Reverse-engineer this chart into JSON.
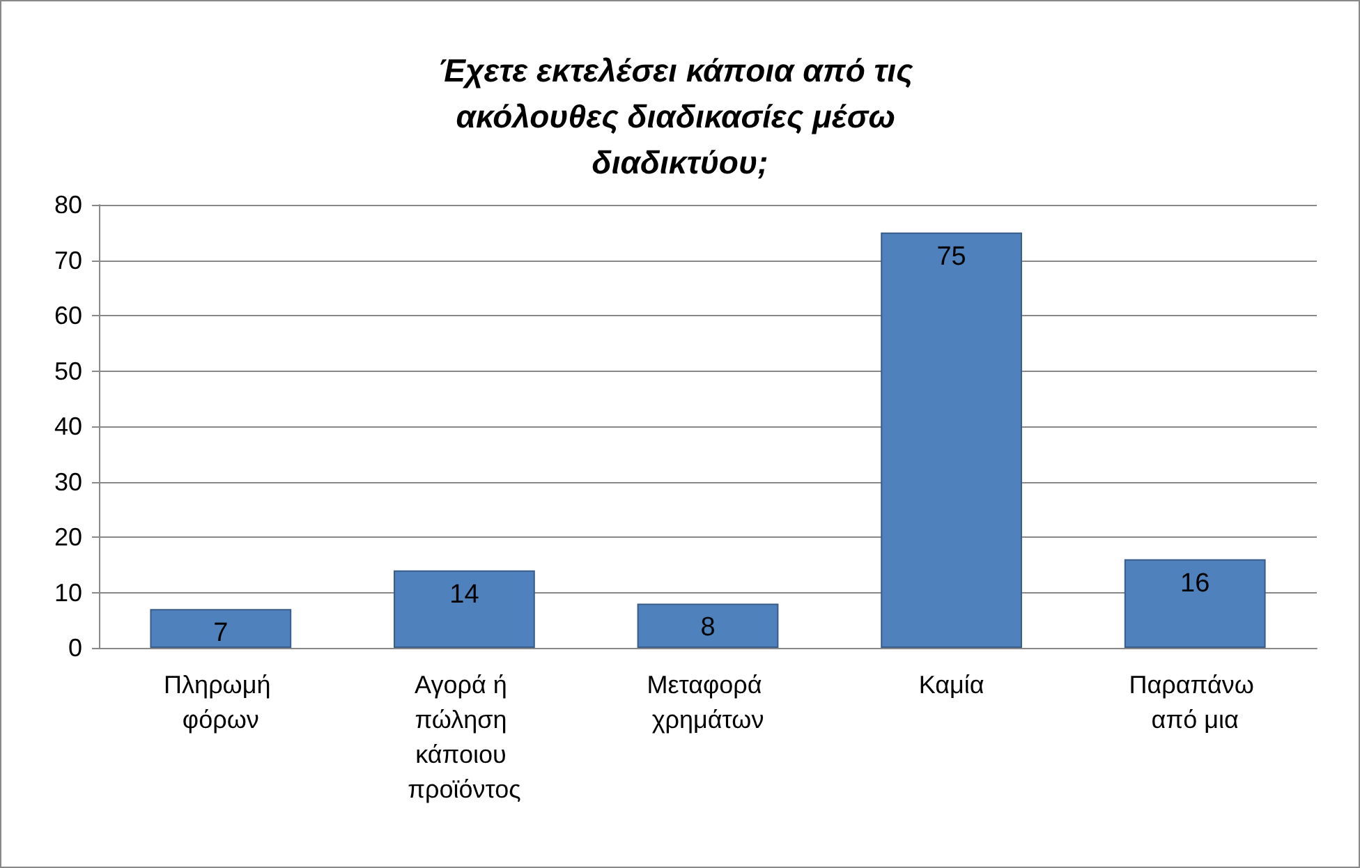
{
  "chart_data": {
    "type": "bar",
    "title": "Έχετε εκτελέσει κάποια από τις ακόλουθες διαδικασίες μέσω διαδικτύου;",
    "categories": [
      "Πληρωμή φόρων",
      "Αγορά ή πώληση κάποιου προϊόντος",
      "Μεταφορά χρημάτων",
      "Καμία",
      "Παραπάνω από μια"
    ],
    "values": [
      7,
      14,
      8,
      75,
      16
    ],
    "color": "#4f81bd",
    "ylim": [
      0,
      80
    ],
    "yticks": [
      0,
      10,
      20,
      30,
      40,
      50,
      60,
      70,
      80
    ],
    "grid": true,
    "data_labels": true
  }
}
